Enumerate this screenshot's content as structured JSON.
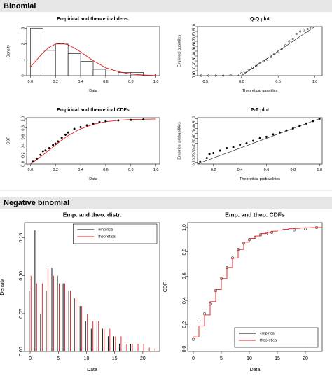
{
  "sections": [
    {
      "title": "Binomial"
    },
    {
      "title": "Negative binomial"
    }
  ],
  "chart_data": [
    {
      "type": "histogram",
      "title": "Empirical and theoretical dens.",
      "xlabel": "Data",
      "ylabel": "Density",
      "xlim": [
        -0.03,
        1.03
      ],
      "ylim": [
        0,
        3.1
      ],
      "xticks": [
        {
          "value": 0,
          "label": "0.0"
        },
        0.2,
        0.4,
        0.6,
        0.8,
        {
          "value": 1,
          "label": "1.0"
        }
      ],
      "yticks": [
        0,
        1,
        2,
        3
      ],
      "bins": [
        0,
        0.1,
        0.2,
        0.3,
        0.4,
        0.5,
        0.6,
        0.7,
        0.8,
        0.9,
        1.0
      ],
      "values": [
        3.0,
        1.6,
        2.0,
        1.4,
        0.9,
        0.4,
        0.3,
        0.2,
        0.2,
        0.1
      ],
      "color": "#ffffff",
      "series": [
        {
          "style": "line",
          "color": "#e41a1c",
          "x": [
            0,
            0.05,
            0.1,
            0.15,
            0.2,
            0.25,
            0.3,
            0.35,
            0.4,
            0.5,
            0.6,
            0.7,
            0.8,
            0.9,
            1.0
          ],
          "values": [
            0.55,
            1.0,
            1.45,
            1.8,
            2.0,
            2.05,
            1.95,
            1.75,
            1.5,
            0.95,
            0.5,
            0.25,
            0.1,
            0.04,
            0.01
          ]
        }
      ]
    },
    {
      "type": "scatter",
      "title": "Q-Q plot",
      "xlabel": "Theoretical quantiles",
      "ylabel": "Empirical quantiles",
      "xlim": [
        -0.6,
        1.1
      ],
      "ylim": [
        0,
        1
      ],
      "reference_line": true,
      "xticks": [
        -0.5,
        {
          "value": 0,
          "label": "0.0"
        },
        0.5,
        {
          "value": 1,
          "label": "1.0"
        }
      ],
      "yticks": [
        {
          "value": 0,
          "label": "0.0"
        },
        0.1,
        0.2,
        0.3,
        0.4,
        0.5,
        0.6,
        0.7,
        0.8,
        0.9,
        {
          "value": 1,
          "label": "1.0"
        }
      ],
      "series": [
        {
          "style": "points",
          "marker": "open",
          "color": "#000000",
          "x": [
            -0.55,
            -0.45,
            -0.35,
            -0.25,
            -0.15,
            -0.05,
            0.0,
            0.05,
            0.1,
            0.15,
            0.2,
            0.25,
            0.3,
            0.35,
            0.4,
            0.45,
            0.5,
            0.55,
            0.6,
            0.65,
            0.7,
            0.75,
            0.8,
            0.85,
            0.9,
            0.95
          ],
          "values": [
            0,
            0,
            0,
            0,
            0.01,
            0.02,
            0.05,
            0.08,
            0.12,
            0.16,
            0.2,
            0.25,
            0.3,
            0.33,
            0.38,
            0.45,
            0.5,
            0.55,
            0.62,
            0.7,
            0.75,
            0.85,
            0.9,
            0.93,
            0.95,
            0.97
          ]
        }
      ]
    },
    {
      "type": "scatter",
      "title": "Empirical and theoretical CDFs",
      "xlabel": "Data",
      "ylabel": "CDF",
      "xlim": [
        -0.03,
        1.03
      ],
      "ylim": [
        0,
        1.03
      ],
      "xticks": [
        {
          "value": 0,
          "label": "0.0"
        },
        0.2,
        0.4,
        0.6,
        0.8,
        {
          "value": 1,
          "label": "1.0"
        }
      ],
      "yticks": [
        {
          "value": 0,
          "label": "0.0"
        },
        0.2,
        0.4,
        0.6,
        0.8,
        {
          "value": 1,
          "label": "1.0"
        }
      ],
      "series": [
        {
          "style": "line",
          "color": "#e41a1c",
          "x": [
            0,
            0.05,
            0.1,
            0.15,
            0.2,
            0.25,
            0.3,
            0.4,
            0.5,
            0.6,
            0.7,
            0.8,
            1.0
          ],
          "values": [
            0,
            0.09,
            0.2,
            0.31,
            0.42,
            0.53,
            0.63,
            0.78,
            0.88,
            0.94,
            0.97,
            0.99,
            1.0
          ]
        },
        {
          "style": "points",
          "marker": "filled",
          "color": "#000000",
          "x": [
            0.02,
            0.05,
            0.08,
            0.1,
            0.12,
            0.15,
            0.18,
            0.2,
            0.22,
            0.25,
            0.28,
            0.3,
            0.35,
            0.4,
            0.45,
            0.5,
            0.55,
            0.6,
            0.7,
            0.8,
            0.9
          ],
          "values": [
            0.05,
            0.12,
            0.2,
            0.28,
            0.3,
            0.35,
            0.42,
            0.45,
            0.5,
            0.58,
            0.65,
            0.7,
            0.78,
            0.82,
            0.86,
            0.9,
            0.93,
            0.95,
            0.97,
            0.98,
            0.99
          ]
        }
      ]
    },
    {
      "type": "scatter",
      "title": "P-P plot",
      "xlabel": "Theoretical probabilities",
      "ylabel": "Empirical probabilities",
      "xlim": [
        0.08,
        1.02
      ],
      "ylim": [
        0.08,
        1.02
      ],
      "reference_line": true,
      "xticks": [
        0.2,
        0.4,
        0.6,
        0.8,
        {
          "value": 1,
          "label": "1.0"
        }
      ],
      "yticks": [
        0.1,
        0.2,
        0.3,
        0.4,
        0.5,
        0.6,
        0.7,
        0.8,
        0.9,
        {
          "value": 1,
          "label": "1.0"
        }
      ],
      "series": [
        {
          "style": "points",
          "marker": "filled",
          "color": "#000000",
          "x": [
            0.1,
            0.15,
            0.17,
            0.2,
            0.25,
            0.3,
            0.35,
            0.4,
            0.45,
            0.5,
            0.55,
            0.6,
            0.65,
            0.7,
            0.75,
            0.8,
            0.85,
            0.9,
            0.95,
            1.0
          ],
          "values": [
            0.12,
            0.2,
            0.28,
            0.3,
            0.35,
            0.4,
            0.42,
            0.47,
            0.5,
            0.55,
            0.6,
            0.63,
            0.68,
            0.72,
            0.76,
            0.8,
            0.85,
            0.9,
            0.95,
            1.0
          ]
        }
      ]
    },
    {
      "type": "discrete",
      "title": "Emp. and theo. distr.",
      "xlabel": "Data",
      "ylabel": "Density",
      "xlim": [
        -1,
        23
      ],
      "ylim": [
        0,
        0.17
      ],
      "legend": "top",
      "xticks": [
        0,
        5,
        10,
        15,
        20
      ],
      "yticks": [
        {
          "value": 0,
          "label": "0.00"
        },
        0.05,
        {
          "value": 0.1,
          "label": "0.10"
        },
        0.15
      ],
      "series": [
        {
          "name": "empirical",
          "style": "spikes",
          "color": "#000000",
          "x": [
            0,
            1,
            2,
            3,
            4,
            5,
            6,
            7,
            8,
            9,
            10,
            11,
            12,
            13,
            14,
            15,
            16,
            17,
            18,
            19,
            20,
            21,
            22
          ],
          "values": [
            0.08,
            0.16,
            0.05,
            0.08,
            0.11,
            0.1,
            0.09,
            0.08,
            0.07,
            0.06,
            0.04,
            0.03,
            0.04,
            0.03,
            0.02,
            0.02,
            0.01,
            0.01,
            0.01,
            0,
            0,
            0,
            0
          ]
        },
        {
          "name": "theoretical",
          "style": "spikes",
          "color": "#e41a1c",
          "x": [
            0,
            1,
            2,
            3,
            4,
            5,
            6,
            7,
            8,
            9,
            10,
            11,
            12,
            13,
            14,
            15,
            16,
            17,
            18,
            19,
            20,
            21,
            22
          ],
          "values": [
            0.1,
            0.09,
            0.09,
            0.11,
            0.1,
            0.09,
            0.09,
            0.08,
            0.07,
            0.06,
            0.05,
            0.04,
            0.04,
            0.03,
            0.03,
            0.02,
            0.02,
            0.01,
            0.01,
            0.01,
            0.01,
            0.005,
            0.004
          ]
        }
      ]
    },
    {
      "type": "step",
      "title": "Emp. and theo. CDFs",
      "xlabel": "Data",
      "ylabel": "CDF",
      "xlim": [
        -1,
        23
      ],
      "ylim": [
        -0.02,
        1.04
      ],
      "legend": "bottomright",
      "xticks": [
        0,
        5,
        10,
        15,
        20
      ],
      "yticks": [
        {
          "value": 0,
          "label": "0.0"
        },
        0.2,
        0.4,
        0.6,
        0.8,
        {
          "value": 1,
          "label": "1.0"
        }
      ],
      "series": [
        {
          "name": "empirical",
          "style": "points",
          "marker": "open",
          "color": "#000000",
          "x": [
            0,
            1,
            2,
            3,
            4,
            5,
            6,
            7,
            8,
            9,
            10,
            11,
            12,
            13,
            14,
            16,
            18,
            20,
            22
          ],
          "values": [
            0.08,
            0.24,
            0.29,
            0.37,
            0.48,
            0.58,
            0.67,
            0.75,
            0.82,
            0.87,
            0.9,
            0.92,
            0.94,
            0.95,
            0.96,
            0.97,
            0.98,
            0.99,
            1.0
          ]
        },
        {
          "name": "theoretical",
          "style": "step",
          "color": "#e41a1c",
          "x": [
            0,
            1,
            2,
            3,
            4,
            5,
            6,
            7,
            8,
            9,
            10,
            11,
            12,
            13,
            14,
            15,
            16,
            17,
            18,
            19,
            20,
            21,
            22
          ],
          "values": [
            0.1,
            0.19,
            0.28,
            0.39,
            0.49,
            0.58,
            0.67,
            0.75,
            0.82,
            0.88,
            0.91,
            0.93,
            0.95,
            0.96,
            0.97,
            0.98,
            0.985,
            0.99,
            0.993,
            0.996,
            0.998,
            0.999,
            1.0
          ]
        }
      ]
    }
  ]
}
